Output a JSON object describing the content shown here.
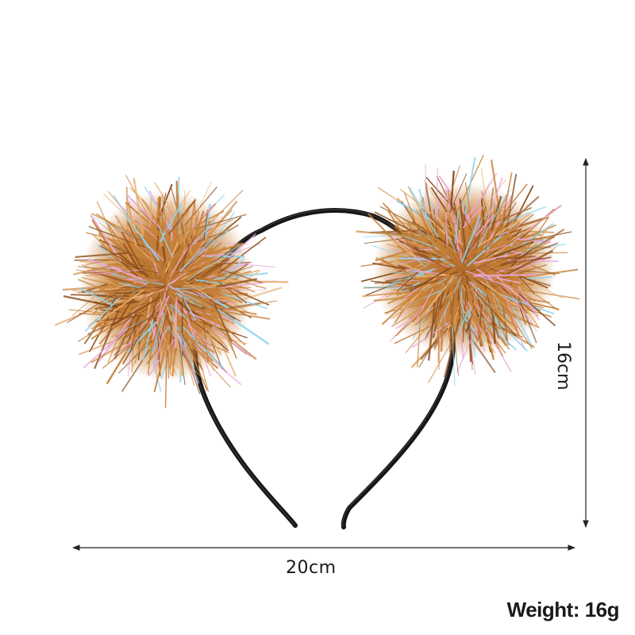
{
  "product": {
    "width_text": "20cm",
    "height_text": "16cm",
    "weight_text": "Weight: 16g"
  },
  "colors": {
    "tinsel_primary": "#c8823a",
    "tinsel_dark": "#8a4e1e",
    "tinsel_highlight": "#e8b070",
    "iridescent_blue": "#8fd3ee",
    "iridescent_pink": "#e8a8d8",
    "band": "#161616",
    "dimension_line": "#222222"
  }
}
